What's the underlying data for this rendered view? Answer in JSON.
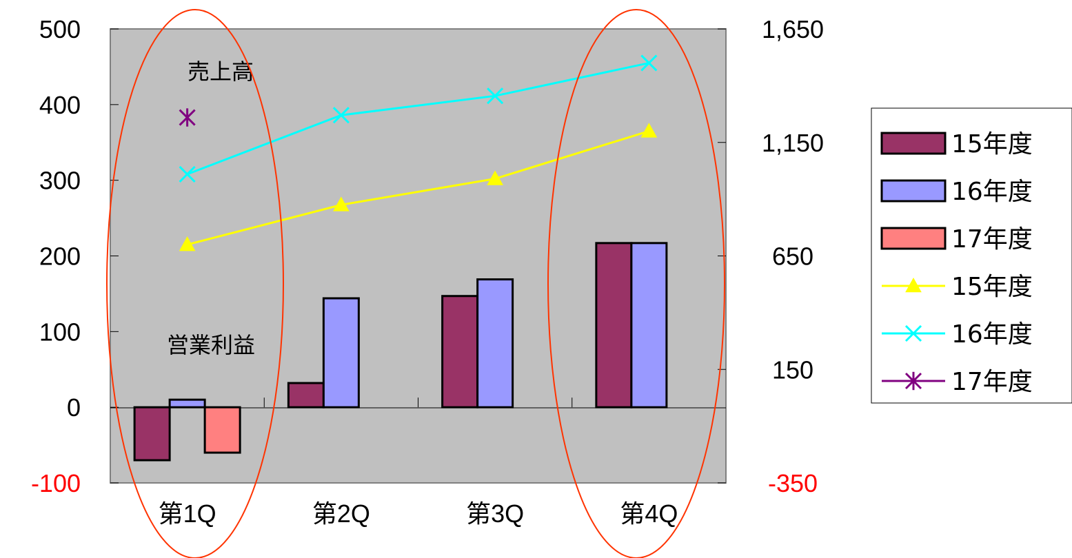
{
  "chart_data": {
    "type": "bar",
    "categories": [
      "第1Q",
      "第2Q",
      "第3Q",
      "第4Q"
    ],
    "bar_series": [
      {
        "name": "15年度",
        "values": [
          -70,
          32,
          147,
          217
        ],
        "color": "#993366"
      },
      {
        "name": "16年度",
        "values": [
          10,
          144,
          169,
          217
        ],
        "color": "#9999ff"
      },
      {
        "name": "17年度",
        "values": [
          -60,
          null,
          null,
          null
        ],
        "color": "#ff8080"
      }
    ],
    "line_series": [
      {
        "name": "15年度",
        "values": [
          700,
          875,
          990,
          1200
        ],
        "color": "#ffff00",
        "marker": "triangle"
      },
      {
        "name": "16年度",
        "values": [
          1010,
          1270,
          1355,
          1500
        ],
        "color": "#00ffff",
        "marker": "x"
      },
      {
        "name": "17年度",
        "values": [
          1260,
          null,
          null,
          null
        ],
        "color": "#800080",
        "marker": "asterisk"
      }
    ],
    "y_left": {
      "range": [
        -100,
        500
      ],
      "ticks": [
        "500",
        "400",
        "300",
        "200",
        "100",
        "0",
        "-100"
      ],
      "tick_values": [
        500,
        400,
        300,
        200,
        100,
        0,
        -100
      ]
    },
    "y_right": {
      "range": [
        -350,
        1650
      ],
      "ticks": [
        "1,650",
        "1,150",
        "650",
        "150",
        "-350"
      ],
      "tick_values": [
        1650,
        1150,
        650,
        150,
        -350
      ]
    },
    "negative_tick_color": "#ff0000",
    "plot_background": "#c0c0c0",
    "highlight_color": "#ff3300",
    "annotations": {
      "sales": "売上高",
      "operating_profit": "営業利益"
    },
    "legend": {
      "placement": "right",
      "entries": [
        "15年度",
        "16年度",
        "17年度",
        "15年度",
        "16年度",
        "17年度"
      ]
    },
    "grid": false
  }
}
